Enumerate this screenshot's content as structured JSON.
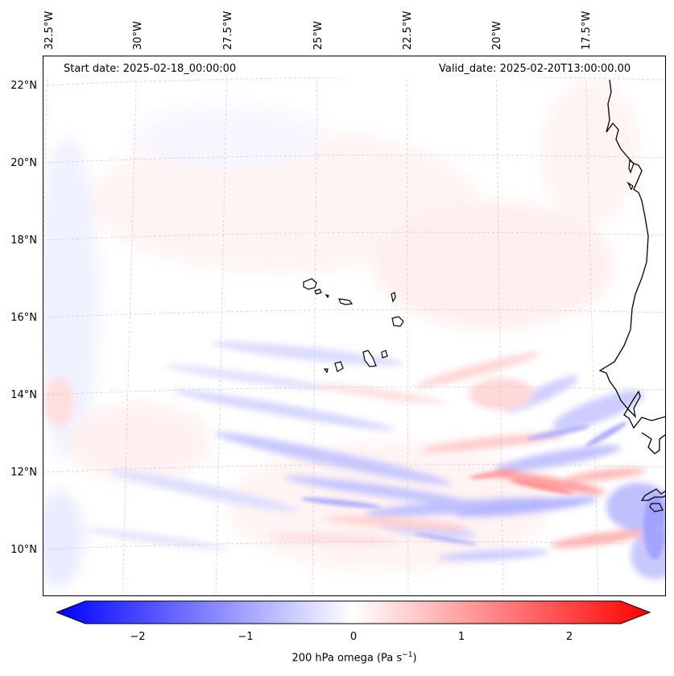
{
  "map": {
    "start_date": "Start date: 2025-02-18_00:00:00",
    "valid_date": "Valid_date: 2025-02-20T13:00:00.00",
    "lon_labels": [
      "32.5°W",
      "30°W",
      "27.5°W",
      "25°W",
      "22.5°W",
      "20°W",
      "17.5°W"
    ],
    "lat_labels": [
      "22°N",
      "20°N",
      "18°N",
      "16°N",
      "14°N",
      "12°N",
      "10°N"
    ],
    "variable": "200 hPa omega",
    "colormap": "bwr",
    "colors": {
      "negative": "#0000ff",
      "neutral": "#ffffff",
      "positive": "#ff0000",
      "coast": "#000000"
    }
  },
  "colorbar": {
    "ticks": [
      "−2",
      "−1",
      "0",
      "1",
      "2"
    ],
    "label": "200 hPa omega (Pa s",
    "label_exp": "−1",
    "label_close": ")",
    "min": -2.5,
    "max": 2.5
  }
}
